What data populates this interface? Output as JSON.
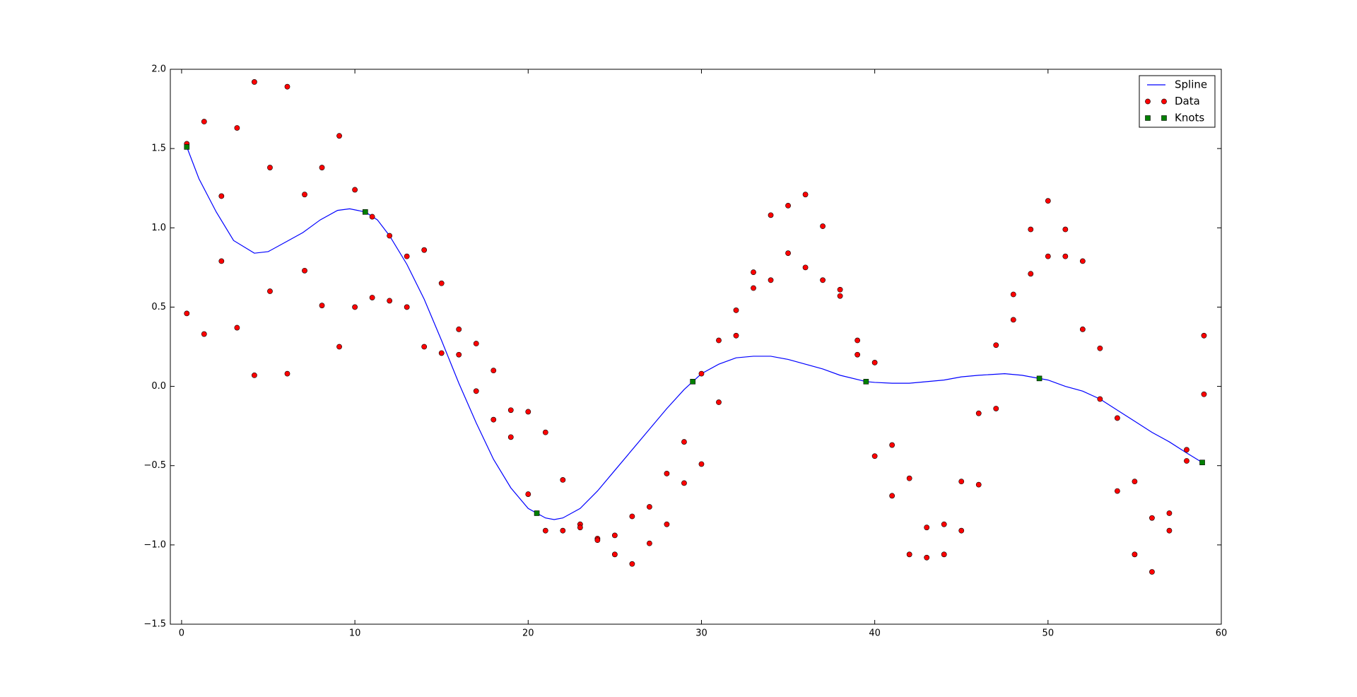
{
  "chart_data": {
    "type": "line",
    "xlim": [
      -0.65,
      60
    ],
    "ylim": [
      -1.5,
      2.0
    ],
    "xticks": [
      0,
      10,
      20,
      30,
      40,
      50,
      60
    ],
    "yticks": [
      {
        "value": -1.5,
        "label": "−1.5"
      },
      {
        "value": -1.0,
        "label": "−1.0"
      },
      {
        "value": -0.5,
        "label": "−0.5"
      },
      {
        "value": 0.0,
        "label": "0.0"
      },
      {
        "value": 0.5,
        "label": "0.5"
      },
      {
        "value": 1.0,
        "label": "1.0"
      },
      {
        "value": 1.5,
        "label": "1.5"
      },
      {
        "value": 2.0,
        "label": "2.0"
      }
    ],
    "legend": "upper right",
    "series": [
      {
        "name": "Spline",
        "color": "#0000ff",
        "marker": "line",
        "x": [
          0.3,
          1,
          2,
          3,
          4.2,
          5,
          6,
          7,
          8,
          9,
          9.7,
          10.6,
          11.3,
          12,
          13,
          14,
          15,
          16,
          17,
          18,
          19,
          20,
          20.5,
          21,
          21.5,
          22,
          22.5,
          23,
          24,
          25,
          26,
          27,
          28,
          29,
          29.5,
          30,
          31,
          32,
          33,
          34,
          35,
          36,
          37,
          38,
          39.5,
          40,
          41,
          42,
          43,
          44,
          45,
          46,
          47.5,
          48.5,
          49.5,
          50,
          51,
          52,
          53,
          54,
          55,
          56,
          57,
          58,
          58.9
        ],
        "values": [
          1.51,
          1.31,
          1.1,
          0.92,
          0.84,
          0.85,
          0.91,
          0.97,
          1.05,
          1.11,
          1.12,
          1.1,
          1.05,
          0.95,
          0.77,
          0.55,
          0.29,
          0.02,
          -0.23,
          -0.46,
          -0.64,
          -0.77,
          -0.8,
          -0.83,
          -0.84,
          -0.83,
          -0.8,
          -0.77,
          -0.66,
          -0.53,
          -0.4,
          -0.27,
          -0.14,
          -0.02,
          0.03,
          0.08,
          0.14,
          0.18,
          0.19,
          0.19,
          0.17,
          0.14,
          0.11,
          0.07,
          0.03,
          0.025,
          0.02,
          0.02,
          0.03,
          0.04,
          0.06,
          0.07,
          0.08,
          0.07,
          0.05,
          0.04,
          0.0,
          -0.03,
          -0.08,
          -0.15,
          -0.22,
          -0.29,
          -0.35,
          -0.42,
          -0.48
        ]
      },
      {
        "name": "Data",
        "color": "#ff0000",
        "marker": "circle",
        "x": [
          0.3,
          0.3,
          1.3,
          1.3,
          2.3,
          2.3,
          3.2,
          3.2,
          4.2,
          4.2,
          5.1,
          5.1,
          6.1,
          6.1,
          7.1,
          7.1,
          8.1,
          8.1,
          9.1,
          9.1,
          10,
          10,
          11,
          11,
          12,
          12,
          13,
          13,
          14,
          14,
          15,
          15,
          16,
          16,
          17,
          17,
          18,
          18,
          19,
          19,
          20,
          20,
          21,
          21,
          22,
          22,
          23,
          23,
          24,
          24,
          25,
          25,
          26,
          26,
          27,
          27,
          28,
          28,
          29,
          29,
          30,
          30,
          31,
          31,
          32,
          32,
          33,
          33,
          34,
          34,
          35,
          35,
          36,
          36,
          37,
          37,
          38,
          38,
          39,
          39,
          40,
          40,
          41,
          41,
          42,
          42,
          43,
          43,
          44,
          44,
          45,
          45,
          46,
          46,
          47,
          47,
          48,
          48,
          49,
          49,
          50,
          50,
          51,
          51,
          52,
          52,
          53,
          53,
          54,
          54,
          55,
          55,
          56,
          56,
          57,
          57,
          58,
          58,
          59,
          59
        ],
        "values": [
          1.53,
          0.46,
          1.67,
          0.33,
          1.2,
          0.79,
          1.63,
          0.37,
          1.92,
          0.07,
          1.38,
          0.6,
          1.89,
          0.08,
          1.21,
          0.73,
          1.38,
          0.51,
          1.58,
          0.25,
          1.24,
          0.5,
          1.07,
          0.56,
          0.95,
          0.54,
          0.82,
          0.5,
          0.86,
          0.25,
          0.65,
          0.21,
          0.36,
          0.2,
          0.27,
          -0.03,
          0.1,
          -0.21,
          -0.15,
          -0.32,
          -0.16,
          -0.68,
          -0.29,
          -0.91,
          -0.59,
          -0.91,
          -0.87,
          -0.89,
          -0.96,
          -0.97,
          -0.94,
          -1.06,
          -0.82,
          -1.12,
          -0.76,
          -0.99,
          -0.55,
          -0.87,
          -0.35,
          -0.61,
          0.08,
          -0.49,
          0.29,
          -0.1,
          0.48,
          0.32,
          0.72,
          0.62,
          1.08,
          0.67,
          1.14,
          0.84,
          1.21,
          0.75,
          1.01,
          0.67,
          0.61,
          0.57,
          0.29,
          0.2,
          0.15,
          -0.44,
          -0.37,
          -0.69,
          -0.58,
          -1.06,
          -0.89,
          -1.08,
          -0.87,
          -1.06,
          -0.6,
          -0.91,
          -0.17,
          -0.62,
          0.26,
          -0.14,
          0.58,
          0.42,
          0.99,
          0.71,
          1.17,
          0.82,
          0.99,
          0.82,
          0.79,
          0.36,
          0.24,
          -0.08,
          -0.2,
          -0.66,
          -0.6,
          -1.06,
          -0.83,
          -1.17,
          -0.8,
          -0.91,
          -0.4,
          -0.47,
          0.32,
          -0.05
        ]
      },
      {
        "name": "Knots",
        "color": "#008000",
        "marker": "square",
        "x": [
          0.3,
          10.6,
          20.5,
          29.5,
          39.5,
          49.5,
          58.9
        ],
        "values": [
          1.51,
          1.1,
          -0.8,
          0.03,
          0.03,
          0.05,
          -0.48
        ]
      }
    ]
  }
}
